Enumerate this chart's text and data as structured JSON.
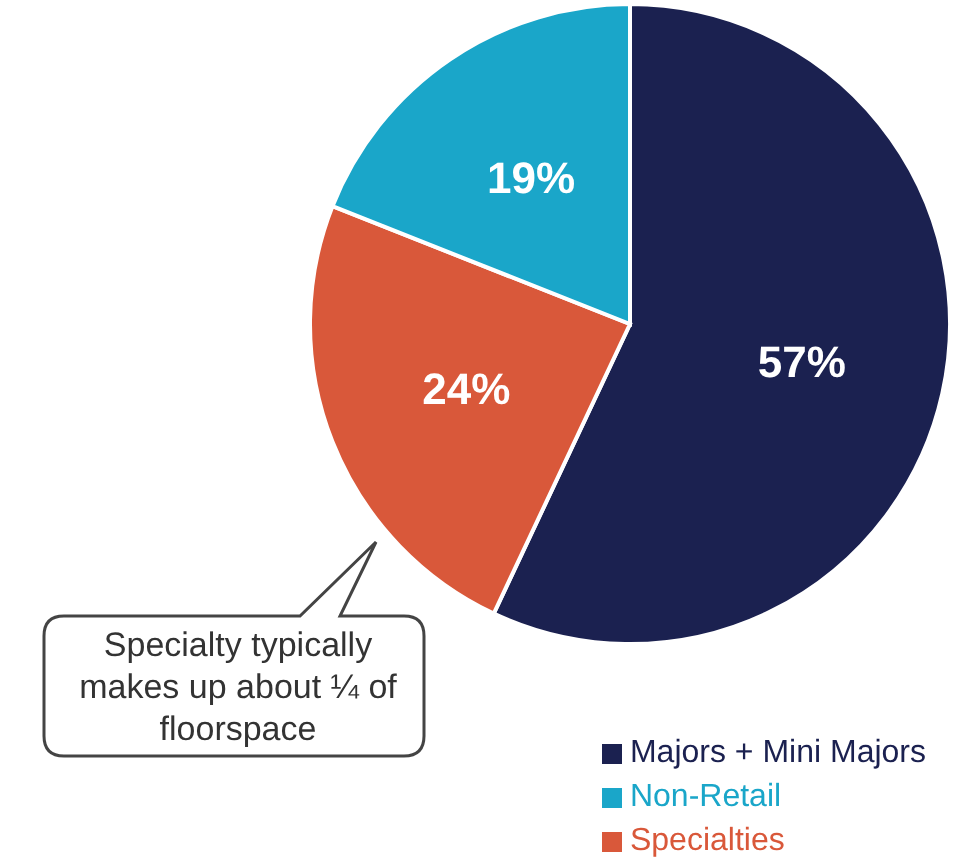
{
  "chart_data": {
    "type": "pie",
    "categories": [
      "Majors + Mini Majors",
      "Specialties",
      "Non-Retail"
    ],
    "values": [
      57,
      24,
      19
    ],
    "value_labels": [
      "57%",
      "24%",
      "19%"
    ],
    "colors": [
      "#1b2150",
      "#d9583a",
      "#1aa6c9"
    ],
    "legend": "bottom right",
    "annotations": [
      "Specialty typically makes up about ¼ of floorspace"
    ]
  }
}
